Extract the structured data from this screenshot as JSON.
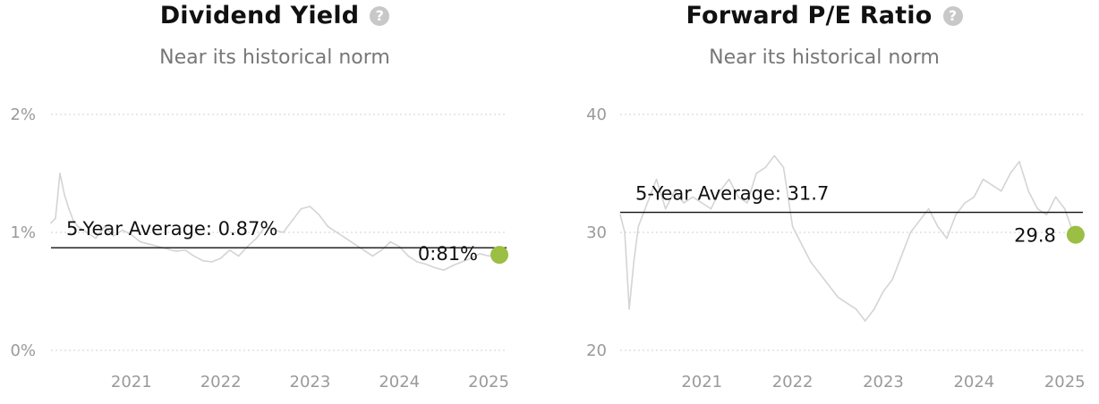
{
  "chart_data": [
    {
      "type": "line",
      "title": "Dividend Yield",
      "subtitle": "Near its historical norm",
      "help_icon": "question-circle-icon",
      "ylim": [
        0,
        2
      ],
      "y_ticks": [
        {
          "value": 2,
          "label": "2%"
        },
        {
          "value": 1,
          "label": "1%"
        },
        {
          "value": 0,
          "label": "0%"
        }
      ],
      "xlim": [
        2020.1,
        2025.2
      ],
      "x_ticks": [
        {
          "value": 2021,
          "label": "2021"
        },
        {
          "value": 2022,
          "label": "2022"
        },
        {
          "value": 2023,
          "label": "2023"
        },
        {
          "value": 2024,
          "label": "2024"
        },
        {
          "value": 2025,
          "label": "2025"
        }
      ],
      "grid": true,
      "average": {
        "value": 0.87,
        "label": "5-Year Average: 0.87%"
      },
      "current": {
        "x": 2025.12,
        "value": 0.81,
        "label": "0:81%"
      },
      "colors": {
        "series": "#d4d4d4",
        "average": "#111111",
        "marker": "#9bbe44",
        "grid": "#d0d0d0"
      },
      "series": [
        {
          "x": [
            2020.1,
            2020.15,
            2020.2,
            2020.25,
            2020.3,
            2020.35,
            2020.4,
            2020.5,
            2020.6,
            2020.7,
            2020.8,
            2020.9,
            2021.0,
            2021.1,
            2021.2,
            2021.3,
            2021.4,
            2021.5,
            2021.6,
            2021.7,
            2021.8,
            2021.9,
            2022.0,
            2022.1,
            2022.2,
            2022.3,
            2022.4,
            2022.5,
            2022.6,
            2022.7,
            2022.8,
            2022.9,
            2023.0,
            2023.1,
            2023.2,
            2023.3,
            2023.4,
            2023.5,
            2023.6,
            2023.7,
            2023.8,
            2023.9,
            2024.0,
            2024.1,
            2024.2,
            2024.3,
            2024.4,
            2024.5,
            2024.6,
            2024.7,
            2024.8,
            2024.9,
            2025.0,
            2025.1
          ],
          "values": [
            1.08,
            1.12,
            1.5,
            1.32,
            1.2,
            1.1,
            1.05,
            1.0,
            0.95,
            1.05,
            0.97,
            1.02,
            0.98,
            0.92,
            0.9,
            0.88,
            0.86,
            0.84,
            0.85,
            0.8,
            0.76,
            0.75,
            0.78,
            0.85,
            0.8,
            0.88,
            0.95,
            1.05,
            1.02,
            1.0,
            1.1,
            1.2,
            1.22,
            1.15,
            1.05,
            1.0,
            0.95,
            0.9,
            0.85,
            0.8,
            0.85,
            0.92,
            0.88,
            0.8,
            0.75,
            0.73,
            0.7,
            0.68,
            0.72,
            0.75,
            0.78,
            0.82,
            0.8,
            0.81
          ]
        }
      ]
    },
    {
      "type": "line",
      "title": "Forward P/E Ratio",
      "subtitle": "Near its historical norm",
      "help_icon": "question-circle-icon",
      "ylim": [
        20,
        40
      ],
      "y_ticks": [
        {
          "value": 40,
          "label": "40"
        },
        {
          "value": 30,
          "label": "30"
        },
        {
          "value": 20,
          "label": "20"
        }
      ],
      "xlim": [
        2020.1,
        2025.2
      ],
      "x_ticks": [
        {
          "value": 2021,
          "label": "2021"
        },
        {
          "value": 2022,
          "label": "2022"
        },
        {
          "value": 2023,
          "label": "2023"
        },
        {
          "value": 2024,
          "label": "2024"
        },
        {
          "value": 2025,
          "label": "2025"
        }
      ],
      "grid": true,
      "average": {
        "value": 31.7,
        "label": "5-Year Average: 31.7"
      },
      "current": {
        "x": 2025.12,
        "value": 29.8,
        "label": "29.8"
      },
      "colors": {
        "series": "#d4d4d4",
        "average": "#111111",
        "marker": "#9bbe44",
        "grid": "#d0d0d0"
      },
      "series": [
        {
          "x": [
            2020.1,
            2020.15,
            2020.2,
            2020.25,
            2020.3,
            2020.35,
            2020.4,
            2020.5,
            2020.6,
            2020.7,
            2020.8,
            2020.9,
            2021.0,
            2021.1,
            2021.2,
            2021.3,
            2021.4,
            2021.5,
            2021.6,
            2021.7,
            2021.8,
            2021.9,
            2022.0,
            2022.1,
            2022.2,
            2022.3,
            2022.4,
            2022.5,
            2022.6,
            2022.7,
            2022.8,
            2022.9,
            2023.0,
            2023.1,
            2023.2,
            2023.3,
            2023.4,
            2023.5,
            2023.6,
            2023.7,
            2023.8,
            2023.9,
            2024.0,
            2024.1,
            2024.2,
            2024.3,
            2024.4,
            2024.5,
            2024.6,
            2024.7,
            2024.8,
            2024.9,
            2025.0,
            2025.1
          ],
          "values": [
            31.5,
            30.0,
            23.5,
            27.5,
            30.5,
            31.5,
            32.5,
            34.5,
            32.0,
            33.5,
            32.5,
            33.0,
            32.5,
            32.0,
            33.5,
            34.5,
            33.0,
            32.5,
            35.0,
            35.5,
            36.5,
            35.5,
            30.5,
            29.0,
            27.5,
            26.5,
            25.5,
            24.5,
            24.0,
            23.5,
            22.5,
            23.5,
            25.0,
            26.0,
            28.0,
            30.0,
            31.0,
            32.0,
            30.5,
            29.5,
            31.5,
            32.5,
            33.0,
            34.5,
            34.0,
            33.5,
            35.0,
            36.0,
            33.5,
            32.0,
            31.5,
            33.0,
            32.0,
            29.8
          ]
        }
      ]
    }
  ]
}
